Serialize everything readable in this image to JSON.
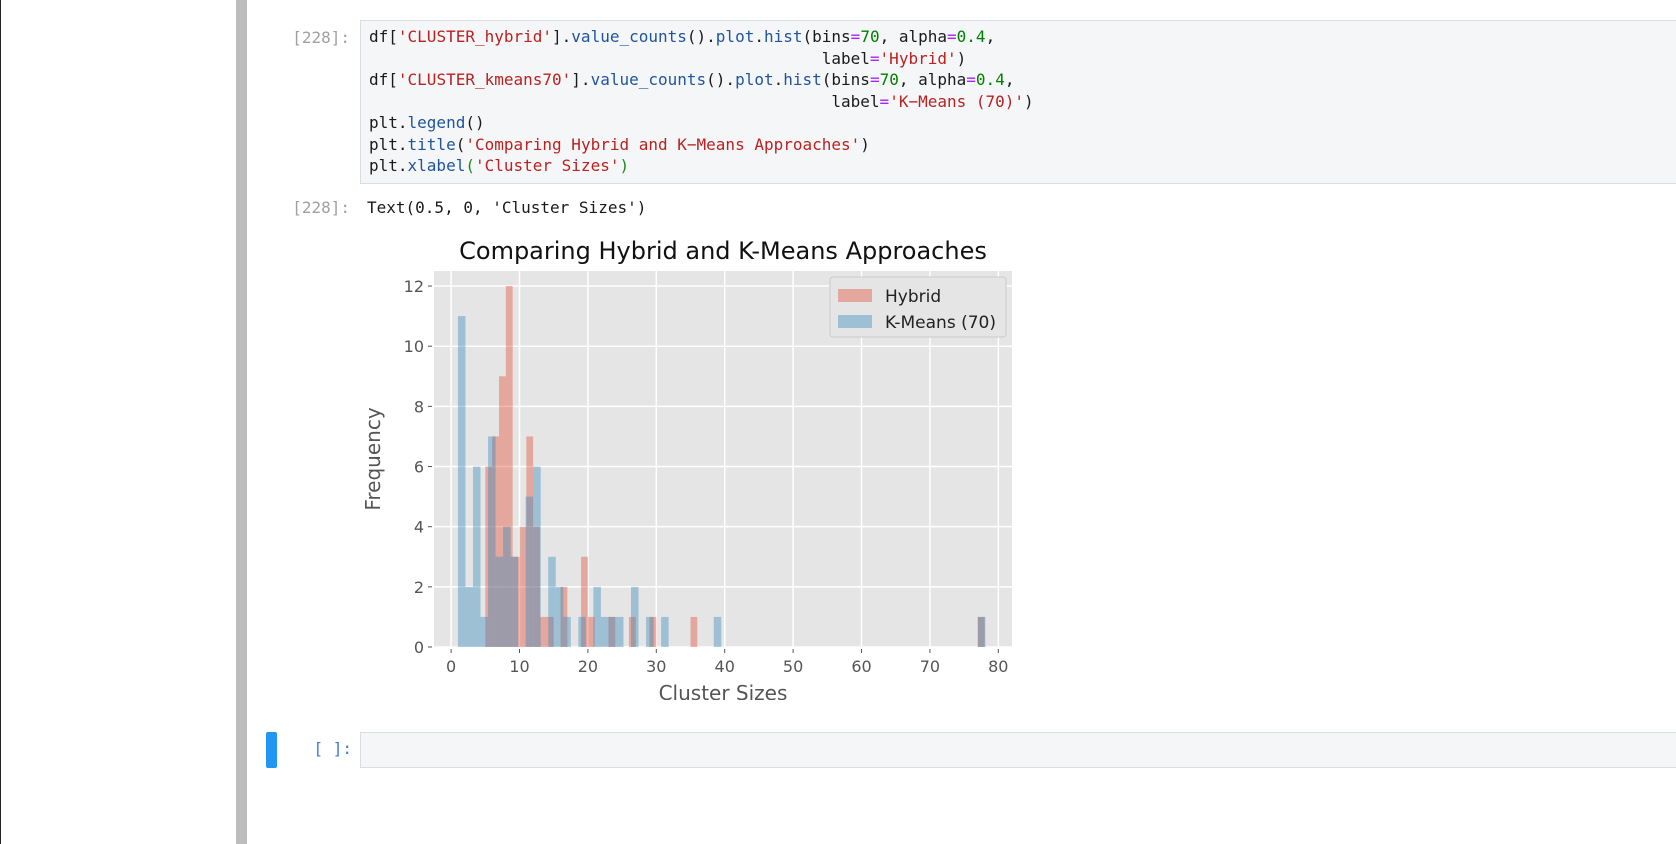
{
  "cell_1": {
    "input_prompt": "[228]:",
    "output_prompt": "[228]:",
    "code": [
      [
        {
          "t": "df[",
          "c": ""
        },
        {
          "t": "'CLUSTER_hybrid'",
          "c": "str"
        },
        {
          "t": "].",
          "c": ""
        },
        {
          "t": "value_counts",
          "c": "fn"
        },
        {
          "t": "().",
          "c": ""
        },
        {
          "t": "plot",
          "c": "fn"
        },
        {
          "t": ".",
          "c": ""
        },
        {
          "t": "hist",
          "c": "fn"
        },
        {
          "t": "(bins",
          "c": ""
        },
        {
          "t": "=",
          "c": "op"
        },
        {
          "t": "70",
          "c": "num"
        },
        {
          "t": ", alpha",
          "c": ""
        },
        {
          "t": "=",
          "c": "op"
        },
        {
          "t": "0.4",
          "c": "num"
        },
        {
          "t": ",",
          "c": ""
        }
      ],
      [
        {
          "t": "                                               label",
          "c": ""
        },
        {
          "t": "=",
          "c": "op"
        },
        {
          "t": "'Hybrid'",
          "c": "str"
        },
        {
          "t": ")",
          "c": ""
        }
      ],
      [
        {
          "t": "df[",
          "c": ""
        },
        {
          "t": "'CLUSTER_kmeans70'",
          "c": "str"
        },
        {
          "t": "].",
          "c": ""
        },
        {
          "t": "value_counts",
          "c": "fn"
        },
        {
          "t": "().",
          "c": ""
        },
        {
          "t": "plot",
          "c": "fn"
        },
        {
          "t": ".",
          "c": ""
        },
        {
          "t": "hist",
          "c": "fn"
        },
        {
          "t": "(bins",
          "c": ""
        },
        {
          "t": "=",
          "c": "op"
        },
        {
          "t": "70",
          "c": "num"
        },
        {
          "t": ", alpha",
          "c": ""
        },
        {
          "t": "=",
          "c": "op"
        },
        {
          "t": "0.4",
          "c": "num"
        },
        {
          "t": ",",
          "c": ""
        }
      ],
      [
        {
          "t": "                                                label",
          "c": ""
        },
        {
          "t": "=",
          "c": "op"
        },
        {
          "t": "'K−Means (70)'",
          "c": "str"
        },
        {
          "t": ")",
          "c": ""
        }
      ],
      [
        {
          "t": "plt.",
          "c": ""
        },
        {
          "t": "legend",
          "c": "fn"
        },
        {
          "t": "()",
          "c": ""
        }
      ],
      [
        {
          "t": "plt.",
          "c": ""
        },
        {
          "t": "title",
          "c": "fn"
        },
        {
          "t": "(",
          "c": ""
        },
        {
          "t": "'Comparing Hybrid and K−Means Approaches'",
          "c": "str"
        },
        {
          "t": ")",
          "c": ""
        }
      ],
      [
        {
          "t": "plt.",
          "c": ""
        },
        {
          "t": "xlabel",
          "c": "fn"
        },
        {
          "t": "(",
          "c": "green"
        },
        {
          "t": "'Cluster Sizes'",
          "c": "str"
        },
        {
          "t": ")",
          "c": "green"
        }
      ]
    ],
    "output_text": "Text(0.5, 0, 'Cluster Sizes')"
  },
  "empty_cell": {
    "prompt": "[ ]:"
  },
  "chart_data": {
    "type": "bar",
    "title": "Comparing Hybrid and K-Means Approaches",
    "xlabel": "Cluster Sizes",
    "ylabel": "Frequency",
    "xlim": [
      -2.5,
      82
    ],
    "ylim": [
      0,
      12.5
    ],
    "xticks": [
      0,
      10,
      20,
      30,
      40,
      50,
      60,
      70,
      80
    ],
    "yticks": [
      0,
      2,
      4,
      6,
      8,
      10,
      12
    ],
    "grid": true,
    "legend_position": "top-right",
    "series": [
      {
        "name": "Hybrid",
        "color": "#e24a33",
        "alpha": 0.4,
        "bins": [
          {
            "x0": 5.0,
            "x1": 6.0,
            "count": 6
          },
          {
            "x0": 6.0,
            "x1": 7.0,
            "count": 7
          },
          {
            "x0": 7.0,
            "x1": 8.0,
            "count": 9
          },
          {
            "x0": 8.0,
            "x1": 9.0,
            "count": 12
          },
          {
            "x0": 9.0,
            "x1": 10.0,
            "count": 3
          },
          {
            "x0": 10.0,
            "x1": 11.0,
            "count": 4
          },
          {
            "x0": 11.0,
            "x1": 12.0,
            "count": 7
          },
          {
            "x0": 12.0,
            "x1": 13.0,
            "count": 4
          },
          {
            "x0": 13.0,
            "x1": 14.0,
            "count": 1
          },
          {
            "x0": 14.0,
            "x1": 15.0,
            "count": 1
          },
          {
            "x0": 16.0,
            "x1": 17.0,
            "count": 2
          },
          {
            "x0": 19.0,
            "x1": 20.0,
            "count": 3
          },
          {
            "x0": 20.0,
            "x1": 21.0,
            "count": 1
          },
          {
            "x0": 23.0,
            "x1": 24.0,
            "count": 1
          },
          {
            "x0": 26.0,
            "x1": 27.0,
            "count": 1
          },
          {
            "x0": 29.0,
            "x1": 30.0,
            "count": 1
          },
          {
            "x0": 35.0,
            "x1": 36.0,
            "count": 1
          },
          {
            "x0": 77.0,
            "x1": 78.0,
            "count": 1
          }
        ]
      },
      {
        "name": "K-Means (70)",
        "color": "#348abd",
        "alpha": 0.4,
        "bins": [
          {
            "x0": 1.0,
            "x1": 2.1,
            "count": 11
          },
          {
            "x0": 2.1,
            "x1": 3.2,
            "count": 2
          },
          {
            "x0": 3.2,
            "x1": 4.3,
            "count": 6
          },
          {
            "x0": 4.3,
            "x1": 5.4,
            "count": 1
          },
          {
            "x0": 5.4,
            "x1": 6.5,
            "count": 7
          },
          {
            "x0": 6.5,
            "x1": 7.6,
            "count": 3
          },
          {
            "x0": 7.6,
            "x1": 8.7,
            "count": 4
          },
          {
            "x0": 8.7,
            "x1": 9.8,
            "count": 3
          },
          {
            "x0": 10.9,
            "x1": 12.0,
            "count": 5
          },
          {
            "x0": 12.0,
            "x1": 13.1,
            "count": 6
          },
          {
            "x0": 14.2,
            "x1": 15.3,
            "count": 3
          },
          {
            "x0": 15.3,
            "x1": 16.4,
            "count": 2
          },
          {
            "x0": 16.4,
            "x1": 17.5,
            "count": 1
          },
          {
            "x0": 18.6,
            "x1": 19.7,
            "count": 1
          },
          {
            "x0": 20.8,
            "x1": 21.9,
            "count": 2
          },
          {
            "x0": 21.9,
            "x1": 23.0,
            "count": 1
          },
          {
            "x0": 23.0,
            "x1": 24.1,
            "count": 1
          },
          {
            "x0": 24.1,
            "x1": 25.2,
            "count": 1
          },
          {
            "x0": 26.3,
            "x1": 27.4,
            "count": 2
          },
          {
            "x0": 28.5,
            "x1": 29.6,
            "count": 1
          },
          {
            "x0": 30.7,
            "x1": 31.8,
            "count": 1
          },
          {
            "x0": 38.4,
            "x1": 39.5,
            "count": 1
          },
          {
            "x0": 77.0,
            "x1": 78.1,
            "count": 1
          }
        ]
      }
    ]
  }
}
